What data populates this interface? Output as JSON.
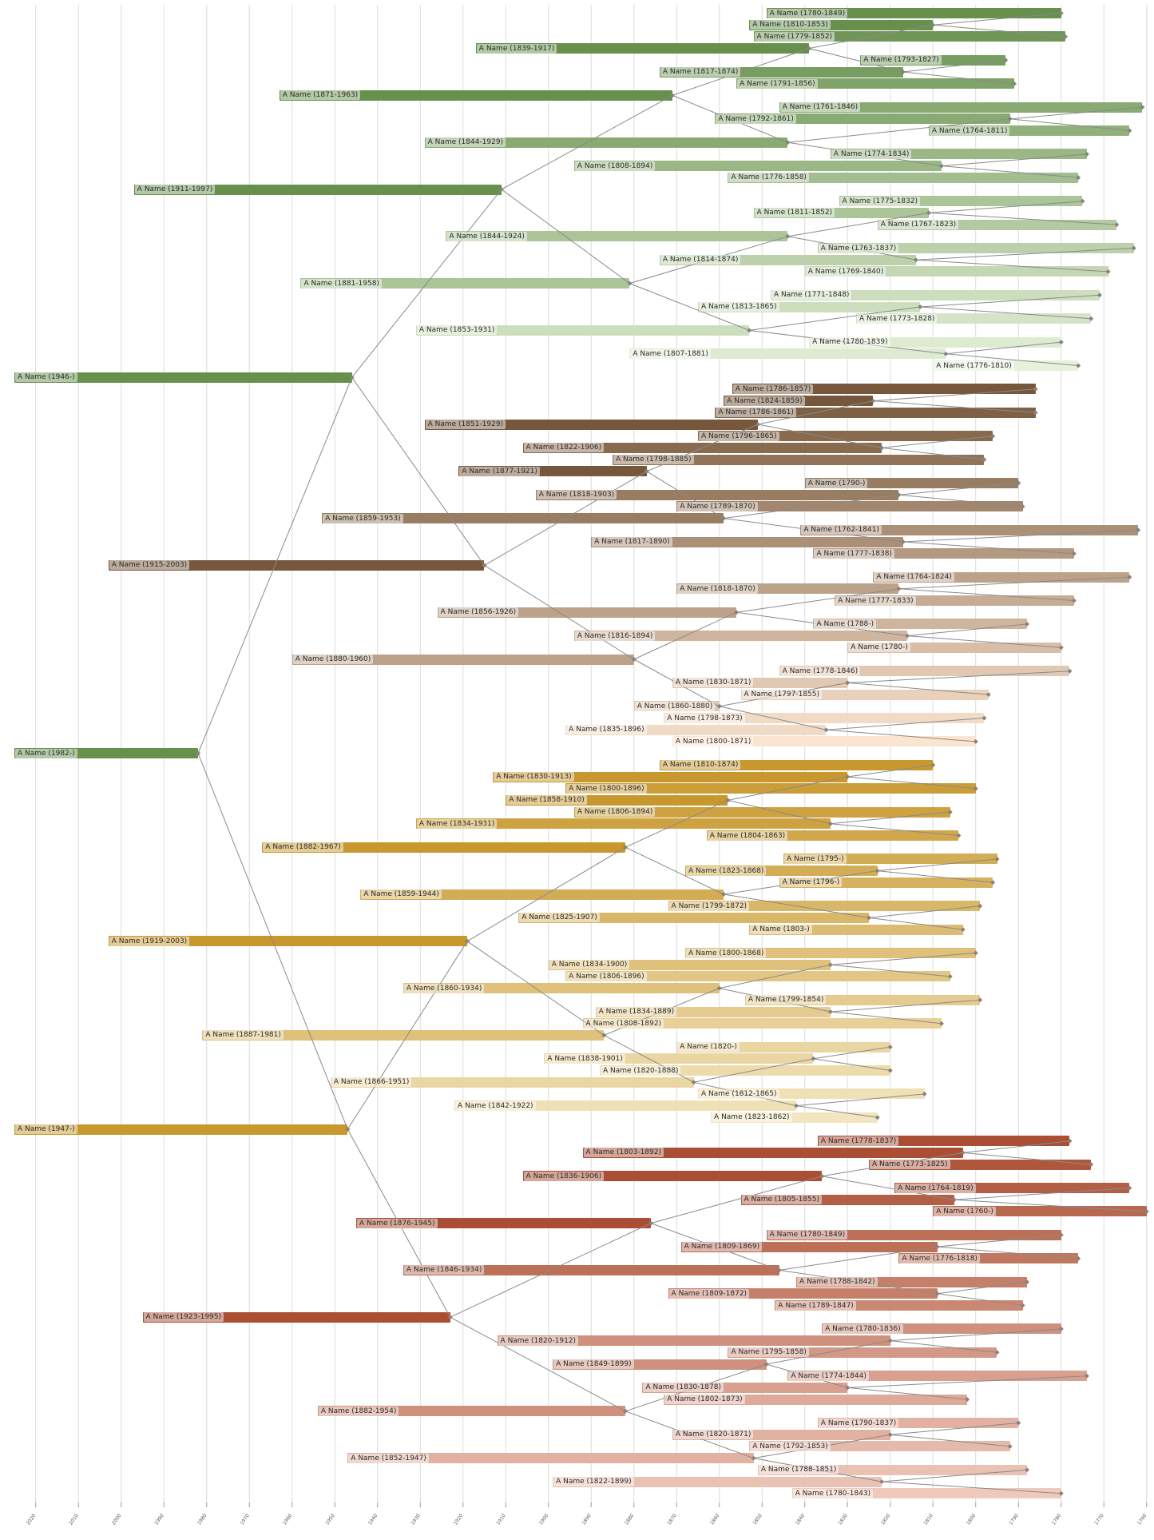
{
  "chart_data": {
    "type": "bar",
    "subtype": "family-tree timeline (horizontal lifespan bars forming an in-order binary ancestor tree; time axis reversed: present at left edge, past at right edge)",
    "title": "",
    "bar_label_name": "A Name",
    "x_axis": {
      "direction": "reversed",
      "left_edge_year": 2025,
      "right_edge_year": 1759,
      "grid": true,
      "tick_labels": [
        "2020",
        "2010",
        "2000",
        "1990",
        "1980",
        "1970",
        "1960",
        "1950",
        "1940",
        "1930",
        "1920",
        "1910",
        "1900",
        "1890",
        "1880",
        "1870",
        "1860",
        "1850",
        "1840",
        "1830",
        "1820",
        "1810",
        "1800",
        "1790",
        "1780",
        "1770",
        "1760"
      ]
    },
    "tree_rule": "parents of row r are rows r-2^(k-1) and r+2^(k-1), where 2^k is the lowest set bit of r; rows are the in-order traversal of the ancestor tree of row 64",
    "sections": {
      "rows_1_31": "green subtree of row 32 father line",
      "row_32": "green (father of root)",
      "rows_33_63": "brown subtree (mother of row 32 side)",
      "row_64": "green (root person)",
      "rows_65_95": "gold subtree of row 96 father line",
      "row_96": "gold (mother of root)",
      "rows_97_127": "red subtree (mother side of row 96)"
    },
    "palettes": {
      "green": {
        "dark": "#67904d",
        "light": "#e6f1da"
      },
      "brown": {
        "dark": "#76573b",
        "light": "#fbe4d0"
      },
      "gold": {
        "dark": "#c8982e",
        "light": "#f3e5bf"
      },
      "red": {
        "dark": "#aa4f34",
        "light": "#efcabc"
      }
    },
    "line_color": "#8a8a8a",
    "node_color": "#848484",
    "grid_color": "#dcdcdc",
    "people": [
      {
        "r": 1,
        "b": 1780,
        "d": 1849,
        "g": "green"
      },
      {
        "r": 2,
        "b": 1810,
        "d": 1853,
        "g": "green"
      },
      {
        "r": 3,
        "b": 1779,
        "d": 1852,
        "g": "green"
      },
      {
        "r": 4,
        "b": 1839,
        "d": 1917,
        "g": "green"
      },
      {
        "r": 5,
        "b": 1793,
        "d": 1827,
        "g": "green"
      },
      {
        "r": 6,
        "b": 1817,
        "d": 1874,
        "g": "green"
      },
      {
        "r": 7,
        "b": 1791,
        "d": 1856,
        "g": "green"
      },
      {
        "r": 8,
        "b": 1871,
        "d": 1963,
        "g": "green"
      },
      {
        "r": 9,
        "b": 1761,
        "d": 1846,
        "g": "green"
      },
      {
        "r": 10,
        "b": 1792,
        "d": 1861,
        "g": "green"
      },
      {
        "r": 11,
        "b": 1764,
        "d": 1811,
        "g": "green"
      },
      {
        "r": 12,
        "b": 1844,
        "d": 1929,
        "g": "green"
      },
      {
        "r": 13,
        "b": 1774,
        "d": 1834,
        "g": "green"
      },
      {
        "r": 14,
        "b": 1808,
        "d": 1894,
        "g": "green"
      },
      {
        "r": 15,
        "b": 1776,
        "d": 1858,
        "g": "green"
      },
      {
        "r": 16,
        "b": 1911,
        "d": 1997,
        "g": "green"
      },
      {
        "r": 17,
        "b": 1775,
        "d": 1832,
        "g": "green"
      },
      {
        "r": 18,
        "b": 1811,
        "d": 1852,
        "g": "green"
      },
      {
        "r": 19,
        "b": 1767,
        "d": 1823,
        "g": "green"
      },
      {
        "r": 20,
        "b": 1844,
        "d": 1924,
        "g": "green"
      },
      {
        "r": 21,
        "b": 1763,
        "d": 1837,
        "g": "green"
      },
      {
        "r": 22,
        "b": 1814,
        "d": 1874,
        "g": "green"
      },
      {
        "r": 23,
        "b": 1769,
        "d": 1840,
        "g": "green"
      },
      {
        "r": 24,
        "b": 1881,
        "d": 1958,
        "g": "green"
      },
      {
        "r": 25,
        "b": 1771,
        "d": 1848,
        "g": "green"
      },
      {
        "r": 26,
        "b": 1813,
        "d": 1865,
        "g": "green"
      },
      {
        "r": 27,
        "b": 1773,
        "d": 1828,
        "g": "green"
      },
      {
        "r": 28,
        "b": 1853,
        "d": 1931,
        "g": "green"
      },
      {
        "r": 29,
        "b": 1780,
        "d": 1839,
        "g": "green"
      },
      {
        "r": 30,
        "b": 1807,
        "d": 1881,
        "g": "green"
      },
      {
        "r": 31,
        "b": 1776,
        "d": 1810,
        "g": "green"
      },
      {
        "r": 32,
        "b": 1946,
        "d": null,
        "g": "green"
      },
      {
        "r": 33,
        "b": 1786,
        "d": 1857,
        "g": "brown"
      },
      {
        "r": 34,
        "b": 1824,
        "d": 1859,
        "g": "brown"
      },
      {
        "r": 35,
        "b": 1786,
        "d": 1861,
        "g": "brown"
      },
      {
        "r": 36,
        "b": 1851,
        "d": 1929,
        "g": "brown"
      },
      {
        "r": 37,
        "b": 1796,
        "d": 1865,
        "g": "brown"
      },
      {
        "r": 38,
        "b": 1822,
        "d": 1906,
        "g": "brown"
      },
      {
        "r": 39,
        "b": 1798,
        "d": 1885,
        "g": "brown"
      },
      {
        "r": 40,
        "b": 1877,
        "d": 1921,
        "g": "brown"
      },
      {
        "r": 41,
        "b": 1790,
        "d": null,
        "g": "brown"
      },
      {
        "r": 42,
        "b": 1818,
        "d": 1903,
        "g": "brown"
      },
      {
        "r": 43,
        "b": 1789,
        "d": 1870,
        "g": "brown"
      },
      {
        "r": 44,
        "b": 1859,
        "d": 1953,
        "g": "brown"
      },
      {
        "r": 45,
        "b": 1762,
        "d": 1841,
        "g": "brown"
      },
      {
        "r": 46,
        "b": 1817,
        "d": 1890,
        "g": "brown"
      },
      {
        "r": 47,
        "b": 1777,
        "d": 1838,
        "g": "brown"
      },
      {
        "r": 48,
        "b": 1915,
        "d": 2003,
        "g": "brown"
      },
      {
        "r": 49,
        "b": 1764,
        "d": 1824,
        "g": "brown"
      },
      {
        "r": 50,
        "b": 1818,
        "d": 1870,
        "g": "brown"
      },
      {
        "r": 51,
        "b": 1777,
        "d": 1833,
        "g": "brown"
      },
      {
        "r": 52,
        "b": 1856,
        "d": 1926,
        "g": "brown"
      },
      {
        "r": 53,
        "b": 1788,
        "d": null,
        "g": "brown"
      },
      {
        "r": 54,
        "b": 1816,
        "d": 1894,
        "g": "brown"
      },
      {
        "r": 55,
        "b": 1780,
        "d": null,
        "g": "brown"
      },
      {
        "r": 56,
        "b": 1880,
        "d": 1960,
        "g": "brown"
      },
      {
        "r": 57,
        "b": 1778,
        "d": 1846,
        "g": "brown"
      },
      {
        "r": 58,
        "b": 1830,
        "d": 1871,
        "g": "brown"
      },
      {
        "r": 59,
        "b": 1797,
        "d": 1855,
        "g": "brown"
      },
      {
        "r": 60,
        "b": 1860,
        "d": 1880,
        "g": "brown"
      },
      {
        "r": 61,
        "b": 1798,
        "d": 1873,
        "g": "brown"
      },
      {
        "r": 62,
        "b": 1835,
        "d": 1896,
        "g": "brown"
      },
      {
        "r": 63,
        "b": 1800,
        "d": 1871,
        "g": "brown"
      },
      {
        "r": 64,
        "b": 1982,
        "d": null,
        "g": "green"
      },
      {
        "r": 65,
        "b": 1810,
        "d": 1874,
        "g": "gold"
      },
      {
        "r": 66,
        "b": 1830,
        "d": 1913,
        "g": "gold"
      },
      {
        "r": 67,
        "b": 1800,
        "d": 1896,
        "g": "gold"
      },
      {
        "r": 68,
        "b": 1858,
        "d": 1910,
        "g": "gold"
      },
      {
        "r": 69,
        "b": 1806,
        "d": 1894,
        "g": "gold"
      },
      {
        "r": 70,
        "b": 1834,
        "d": 1931,
        "g": "gold"
      },
      {
        "r": 71,
        "b": 1804,
        "d": 1863,
        "g": "gold"
      },
      {
        "r": 72,
        "b": 1882,
        "d": 1967,
        "g": "gold"
      },
      {
        "r": 73,
        "b": 1795,
        "d": null,
        "g": "gold"
      },
      {
        "r": 74,
        "b": 1823,
        "d": 1868,
        "g": "gold"
      },
      {
        "r": 75,
        "b": 1796,
        "d": null,
        "g": "gold"
      },
      {
        "r": 76,
        "b": 1859,
        "d": 1944,
        "g": "gold"
      },
      {
        "r": 77,
        "b": 1799,
        "d": 1872,
        "g": "gold"
      },
      {
        "r": 78,
        "b": 1825,
        "d": 1907,
        "g": "gold"
      },
      {
        "r": 79,
        "b": 1803,
        "d": null,
        "g": "gold"
      },
      {
        "r": 80,
        "b": 1919,
        "d": 2003,
        "g": "gold"
      },
      {
        "r": 81,
        "b": 1800,
        "d": 1868,
        "g": "gold"
      },
      {
        "r": 82,
        "b": 1834,
        "d": 1900,
        "g": "gold"
      },
      {
        "r": 83,
        "b": 1806,
        "d": 1896,
        "g": "gold"
      },
      {
        "r": 84,
        "b": 1860,
        "d": 1934,
        "g": "gold"
      },
      {
        "r": 85,
        "b": 1799,
        "d": 1854,
        "g": "gold"
      },
      {
        "r": 86,
        "b": 1834,
        "d": 1889,
        "g": "gold"
      },
      {
        "r": 87,
        "b": 1808,
        "d": 1892,
        "g": "gold"
      },
      {
        "r": 88,
        "b": 1887,
        "d": 1981,
        "g": "gold"
      },
      {
        "r": 89,
        "b": 1820,
        "d": null,
        "g": "gold"
      },
      {
        "r": 90,
        "b": 1838,
        "d": 1901,
        "g": "gold"
      },
      {
        "r": 91,
        "b": 1820,
        "d": 1888,
        "g": "gold"
      },
      {
        "r": 92,
        "b": 1866,
        "d": 1951,
        "g": "gold"
      },
      {
        "r": 93,
        "b": 1812,
        "d": 1865,
        "g": "gold"
      },
      {
        "r": 94,
        "b": 1842,
        "d": 1922,
        "g": "gold"
      },
      {
        "r": 95,
        "b": 1823,
        "d": 1862,
        "g": "gold"
      },
      {
        "r": 96,
        "b": 1947,
        "d": null,
        "g": "gold"
      },
      {
        "r": 97,
        "b": 1778,
        "d": 1837,
        "g": "red"
      },
      {
        "r": 98,
        "b": 1803,
        "d": 1892,
        "g": "red"
      },
      {
        "r": 99,
        "b": 1773,
        "d": 1825,
        "g": "red"
      },
      {
        "r": 100,
        "b": 1836,
        "d": 1906,
        "g": "red"
      },
      {
        "r": 101,
        "b": 1764,
        "d": 1819,
        "g": "red"
      },
      {
        "r": 102,
        "b": 1805,
        "d": 1855,
        "g": "red"
      },
      {
        "r": 103,
        "b": 1760,
        "d": null,
        "g": "red"
      },
      {
        "r": 104,
        "b": 1876,
        "d": 1945,
        "g": "red"
      },
      {
        "r": 105,
        "b": 1780,
        "d": 1849,
        "g": "red"
      },
      {
        "r": 106,
        "b": 1809,
        "d": 1869,
        "g": "red"
      },
      {
        "r": 107,
        "b": 1776,
        "d": 1818,
        "g": "red"
      },
      {
        "r": 108,
        "b": 1846,
        "d": 1934,
        "g": "red"
      },
      {
        "r": 109,
        "b": 1788,
        "d": 1842,
        "g": "red"
      },
      {
        "r": 110,
        "b": 1809,
        "d": 1872,
        "g": "red"
      },
      {
        "r": 111,
        "b": 1789,
        "d": 1847,
        "g": "red"
      },
      {
        "r": 112,
        "b": 1923,
        "d": 1995,
        "g": "red"
      },
      {
        "r": 113,
        "b": 1780,
        "d": 1836,
        "g": "red"
      },
      {
        "r": 114,
        "b": 1820,
        "d": 1912,
        "g": "red"
      },
      {
        "r": 115,
        "b": 1795,
        "d": 1858,
        "g": "red"
      },
      {
        "r": 116,
        "b": 1849,
        "d": 1899,
        "g": "red"
      },
      {
        "r": 117,
        "b": 1774,
        "d": 1844,
        "g": "red"
      },
      {
        "r": 118,
        "b": 1830,
        "d": 1878,
        "g": "red"
      },
      {
        "r": 119,
        "b": 1802,
        "d": 1873,
        "g": "red"
      },
      {
        "r": 120,
        "b": 1882,
        "d": 1954,
        "g": "red"
      },
      {
        "r": 121,
        "b": 1790,
        "d": 1837,
        "g": "red"
      },
      {
        "r": 122,
        "b": 1820,
        "d": 1871,
        "g": "red"
      },
      {
        "r": 123,
        "b": 1792,
        "d": 1853,
        "g": "red"
      },
      {
        "r": 124,
        "b": 1852,
        "d": 1947,
        "g": "red"
      },
      {
        "r": 125,
        "b": 1788,
        "d": 1851,
        "g": "red"
      },
      {
        "r": 126,
        "b": 1822,
        "d": 1899,
        "g": "red"
      },
      {
        "r": 127,
        "b": 1780,
        "d": 1843,
        "g": "red"
      }
    ]
  }
}
